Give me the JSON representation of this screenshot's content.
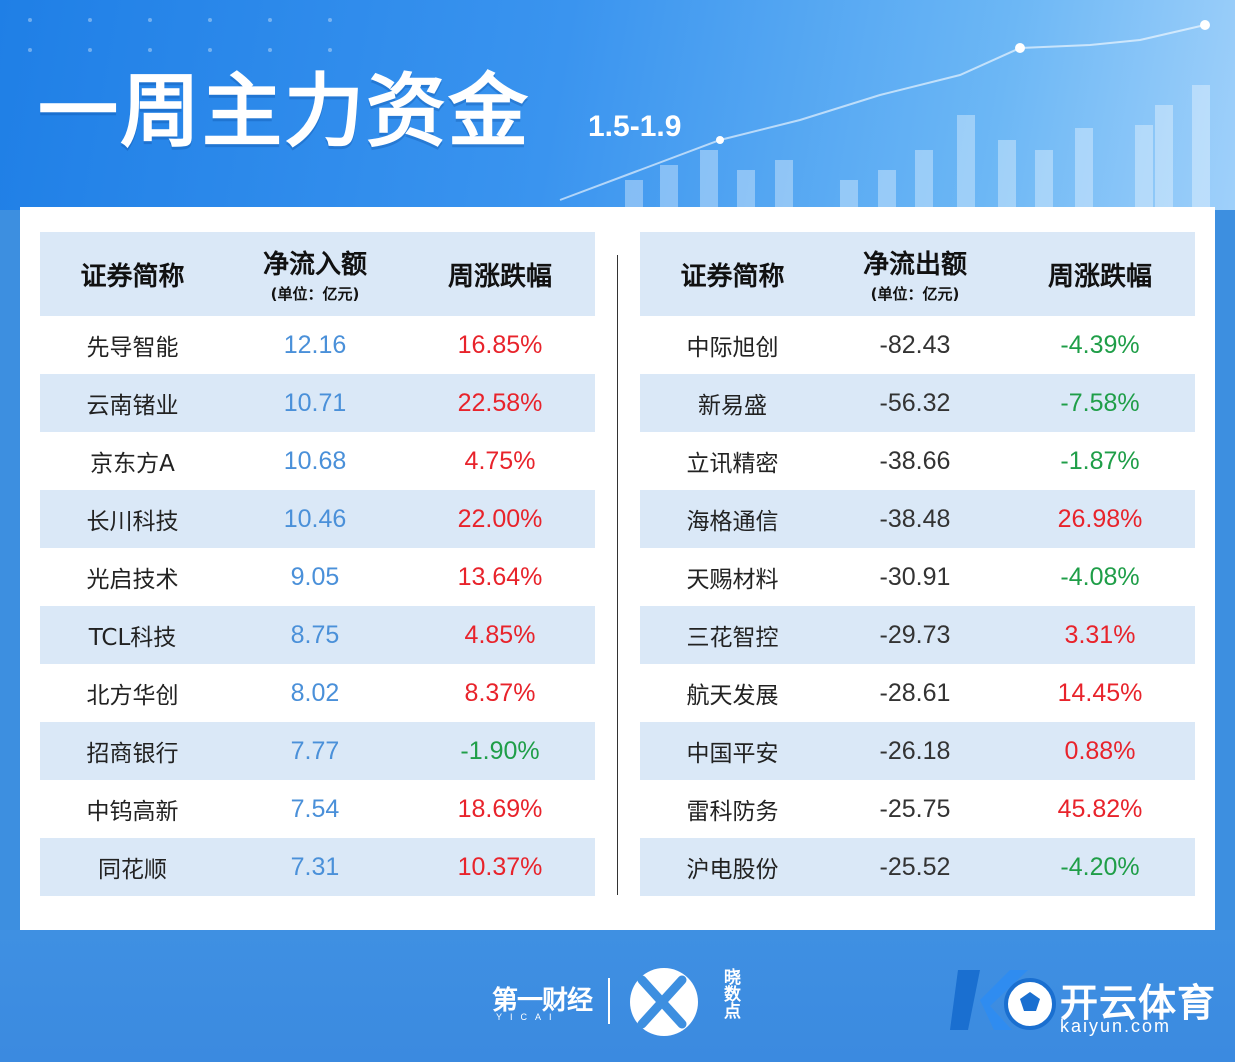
{
  "header": {
    "title": "一周主力资金",
    "date_range": "1.5-1.9"
  },
  "inflow_table": {
    "col_name": "证券简称",
    "col_amount": "净流入额",
    "col_amount_unit": "(单位：亿元)",
    "col_change": "周涨跌幅",
    "rows": [
      {
        "name": "先导智能",
        "amount": "12.16",
        "change": "16.85%",
        "dir": "up"
      },
      {
        "name": "云南锗业",
        "amount": "10.71",
        "change": "22.58%",
        "dir": "up"
      },
      {
        "name": "京东方A",
        "amount": "10.68",
        "change": "4.75%",
        "dir": "up"
      },
      {
        "name": "长川科技",
        "amount": "10.46",
        "change": "22.00%",
        "dir": "up"
      },
      {
        "name": "光启技术",
        "amount": "9.05",
        "change": "13.64%",
        "dir": "up"
      },
      {
        "name": "TCL科技",
        "amount": "8.75",
        "change": "4.85%",
        "dir": "up"
      },
      {
        "name": "北方华创",
        "amount": "8.02",
        "change": "8.37%",
        "dir": "up"
      },
      {
        "name": "招商银行",
        "amount": "7.77",
        "change": "-1.90%",
        "dir": "down"
      },
      {
        "name": "中钨高新",
        "amount": "7.54",
        "change": "18.69%",
        "dir": "up"
      },
      {
        "name": "同花顺",
        "amount": "7.31",
        "change": "10.37%",
        "dir": "up"
      }
    ]
  },
  "outflow_table": {
    "col_name": "证券简称",
    "col_amount": "净流出额",
    "col_amount_unit": "(单位：亿元)",
    "col_change": "周涨跌幅",
    "rows": [
      {
        "name": "中际旭创",
        "amount": "-82.43",
        "change": "-4.39%",
        "dir": "down"
      },
      {
        "name": "新易盛",
        "amount": "-56.32",
        "change": "-7.58%",
        "dir": "down"
      },
      {
        "name": "立讯精密",
        "amount": "-38.66",
        "change": "-1.87%",
        "dir": "down"
      },
      {
        "name": "海格通信",
        "amount": "-38.48",
        "change": "26.98%",
        "dir": "up"
      },
      {
        "name": "天赐材料",
        "amount": "-30.91",
        "change": "-4.08%",
        "dir": "down"
      },
      {
        "name": "三花智控",
        "amount": "-29.73",
        "change": "3.31%",
        "dir": "up"
      },
      {
        "name": "航天发展",
        "amount": "-28.61",
        "change": "14.45%",
        "dir": "up"
      },
      {
        "name": "中国平安",
        "amount": "-26.18",
        "change": "0.88%",
        "dir": "up"
      },
      {
        "name": "雷科防务",
        "amount": "-25.75",
        "change": "45.82%",
        "dir": "up"
      },
      {
        "name": "沪电股份",
        "amount": "-25.52",
        "change": "-4.20%",
        "dir": "down"
      }
    ]
  },
  "footer": {
    "yicai_logo": "第一财经",
    "yicai_sub": "YICAI",
    "xds_logo": "晓数点",
    "brand_name": "开云体育",
    "brand_url": "kaiyun.com"
  },
  "colors": {
    "up": "#e8232b",
    "down": "#1f9e48",
    "inflow_value": "#4a90d9",
    "header_row_bg": "#dae8f7"
  }
}
